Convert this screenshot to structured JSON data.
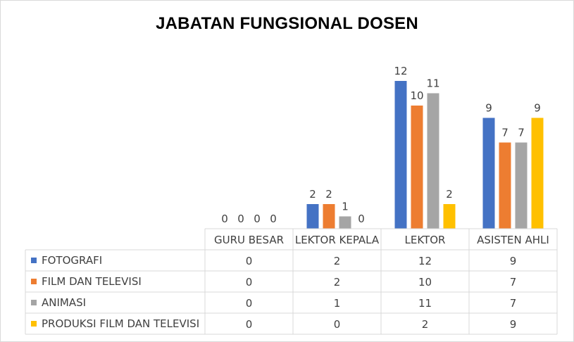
{
  "chart_data": {
    "type": "bar",
    "title": "JABATAN FUNGSIONAL DOSEN",
    "categories": [
      "GURU BESAR",
      "LEKTOR KEPALA",
      "LEKTOR",
      "ASISTEN AHLI"
    ],
    "series": [
      {
        "name": "FOTOGRAFI",
        "color": "#4472c4",
        "values": [
          0,
          2,
          12,
          9
        ]
      },
      {
        "name": "FILM DAN TELEVISI",
        "color": "#ed7d31",
        "values": [
          0,
          2,
          10,
          7
        ]
      },
      {
        "name": "ANIMASI",
        "color": "#a5a5a5",
        "values": [
          0,
          1,
          11,
          7
        ]
      },
      {
        "name": "PRODUKSI FILM DAN TELEVISI",
        "color": "#ffc000",
        "values": [
          0,
          0,
          2,
          9
        ]
      }
    ],
    "ylim": [
      0,
      12
    ],
    "data_labels": true,
    "data_table": true,
    "grid": false
  }
}
